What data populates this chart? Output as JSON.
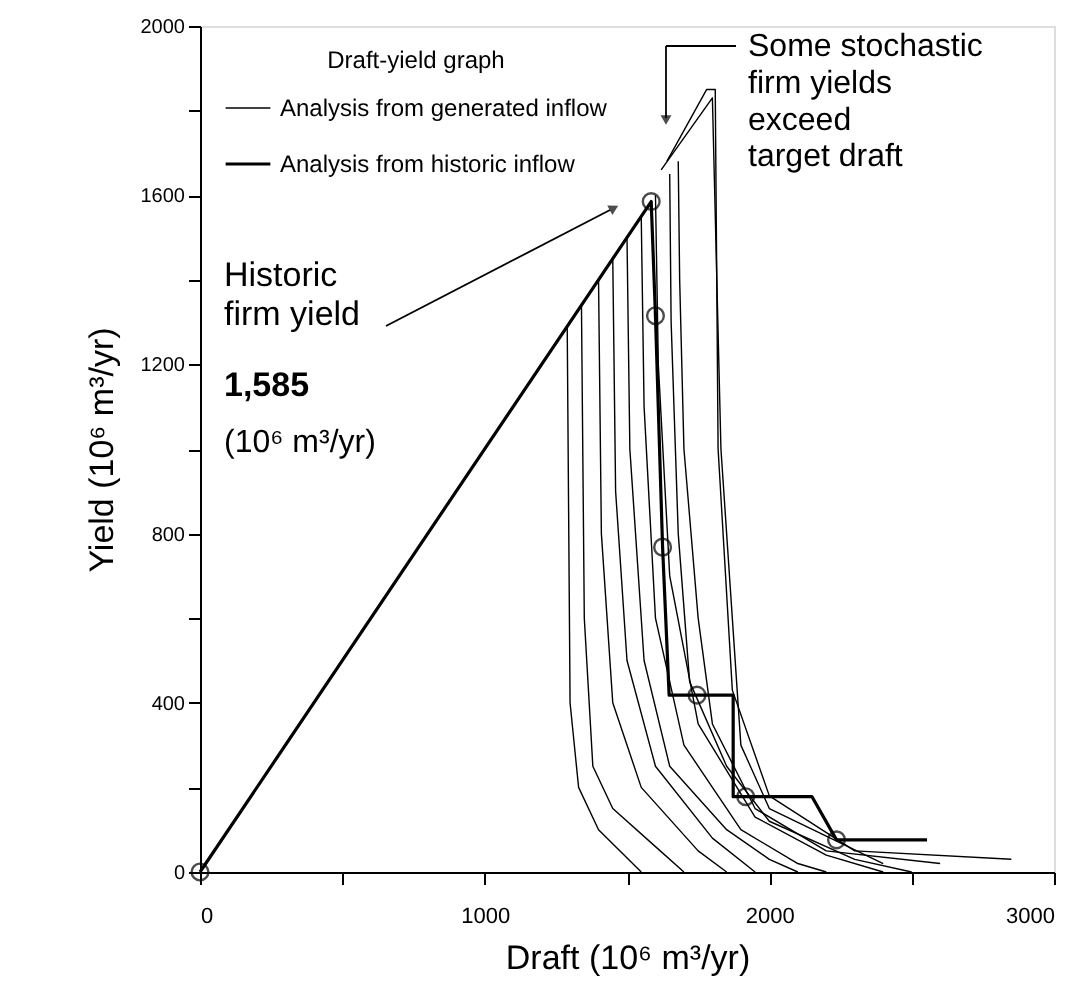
{
  "chart_data": {
    "type": "line",
    "xlabel": "Draft (10⁶ m³/yr)",
    "ylabel": "Yield (10⁶ m³/yr)",
    "legend_title": "Draft-yield graph",
    "xlim": [
      0,
      3000
    ],
    "ylim": [
      0,
      2000
    ],
    "xticks": [
      0,
      {
        "value": 500,
        "label": null
      },
      1000,
      {
        "value": 1500,
        "label": null
      },
      2000,
      {
        "value": 2500,
        "label": null
      },
      3000
    ],
    "yticks": [
      0,
      {
        "value": 200,
        "label": null
      },
      400,
      {
        "value": 600,
        "label": null
      },
      800,
      {
        "value": 1000,
        "label": null
      },
      1200,
      {
        "value": 1400,
        "label": null
      },
      1600,
      {
        "value": 1800,
        "label": null
      },
      2000
    ],
    "grid": false,
    "legend": "top left",
    "series": [
      {
        "name": "Analysis from generated inflow",
        "color": "#000000",
        "x": [
          1290,
          1300,
          1330,
          1400,
          1550
        ],
        "values": [
          1290,
          400,
          200,
          100,
          0
        ]
      },
      {
        "color": "#000000",
        "x": [
          1340,
          1350,
          1380,
          1450,
          1600,
          1700
        ],
        "values": [
          1340,
          600,
          250,
          150,
          60,
          0
        ]
      },
      {
        "color": "#000000",
        "x": [
          1400,
          1410,
          1450,
          1550,
          1750,
          1850
        ],
        "values": [
          1400,
          800,
          400,
          200,
          50,
          0
        ]
      },
      {
        "color": "#000000",
        "x": [
          1450,
          1460,
          1500,
          1600,
          1800,
          1950
        ],
        "values": [
          1450,
          900,
          500,
          250,
          80,
          0
        ]
      },
      {
        "color": "#000000",
        "x": [
          1500,
          1510,
          1560,
          1650,
          1850,
          2000,
          2100
        ],
        "values": [
          1500,
          1000,
          500,
          250,
          100,
          30,
          0
        ]
      },
      {
        "color": "#000000",
        "x": [
          1550,
          1560,
          1600,
          1700,
          1900,
          2100,
          2200
        ],
        "values": [
          1550,
          1100,
          600,
          300,
          100,
          20,
          0
        ]
      },
      {
        "color": "#000000",
        "x": [
          1600,
          1610,
          1650,
          1750,
          1950,
          2200,
          2400
        ],
        "values": [
          1600,
          1200,
          700,
          350,
          130,
          40,
          0
        ]
      },
      {
        "color": "#000000",
        "x": [
          1650,
          1655,
          1680,
          1720,
          1850,
          2000,
          2300,
          2500
        ],
        "values": [
          1650,
          1300,
          800,
          450,
          250,
          120,
          30,
          0
        ]
      },
      {
        "color": "#000000",
        "x": [
          1680,
          1685,
          1700,
          1750,
          1800,
          1950,
          2200,
          2600
        ],
        "values": [
          1680,
          1400,
          1000,
          600,
          350,
          150,
          50,
          20
        ]
      },
      {
        "color": "#000000",
        "x": [
          1620,
          1800,
          1830,
          1900,
          2000,
          2400
        ],
        "values": [
          1660,
          1830,
          1000,
          300,
          150,
          20
        ]
      },
      {
        "color": "#000000",
        "x": [
          1640,
          1780,
          1810,
          1820,
          1870,
          2000,
          2300,
          2850
        ],
        "values": [
          1680,
          1850,
          1850,
          1000,
          430,
          180,
          50,
          30
        ]
      },
      {
        "name": "Analysis from historic inflow",
        "color": "#000000",
        "x": [
          0,
          1585,
          1600,
          1625,
          1648,
          1873,
          1873,
          2150,
          2236,
          2554
        ],
        "values": [
          0,
          1585,
          1315,
          768,
          418,
          418,
          178,
          178,
          76,
          76
        ]
      },
      {
        "type": "scatter",
        "marker": "circle",
        "color": "#000000",
        "x": [
          0,
          1585,
          1600,
          1625,
          1746,
          1917,
          2236
        ],
        "values": [
          0,
          1585,
          1315,
          768,
          418,
          178,
          76
        ]
      }
    ],
    "annotations": [
      "Some stochastic\nfirm yields\nexceed\ntarget draft",
      "Historic\nfirm yield",
      "1,585",
      "(10⁶ m³/yr)"
    ]
  }
}
